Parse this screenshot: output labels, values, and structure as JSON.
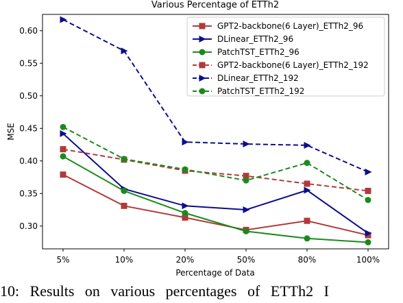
{
  "caption": "10: Results on various percentages of ETTh2 I",
  "chart_data": {
    "type": "line",
    "title": "Various Percentage of ETTh2",
    "xlabel": "Percentage of Data",
    "ylabel": "MSE",
    "categories": [
      "5%",
      "10%",
      "20%",
      "50%",
      "80%",
      "100%"
    ],
    "ylim": [
      0.265,
      0.625
    ],
    "yticks": [
      "0.30",
      "0.35",
      "0.40",
      "0.45",
      "0.50",
      "0.55",
      "0.60"
    ],
    "legend_position": "top-right",
    "grid": false,
    "series": [
      {
        "name": "GPT2-backbone(6 Layer)_ETTh2_96",
        "color": "#b03a3a",
        "dash": "solid",
        "marker": "square",
        "values": [
          0.379,
          0.331,
          0.313,
          0.294,
          0.308,
          0.286
        ]
      },
      {
        "name": "DLinear_ETTh2_96",
        "color": "#0d0d8c",
        "dash": "solid",
        "marker": "triangle-right",
        "values": [
          0.442,
          0.357,
          0.331,
          0.325,
          0.355,
          0.289
        ]
      },
      {
        "name": "PatchTST_ETTh2_96",
        "color": "#1b8a1b",
        "dash": "solid",
        "marker": "circle",
        "values": [
          0.407,
          0.354,
          0.32,
          0.292,
          0.281,
          0.275
        ]
      },
      {
        "name": "GPT2-backbone(6 Layer)_ETTh2_192",
        "color": "#b03a3a",
        "dash": "dashed",
        "marker": "square",
        "values": [
          0.418,
          0.402,
          0.385,
          0.377,
          0.365,
          0.354
        ]
      },
      {
        "name": "DLinear_ETTh2_192",
        "color": "#0d0d8c",
        "dash": "dashed",
        "marker": "triangle-right",
        "values": [
          0.617,
          0.569,
          0.429,
          0.426,
          0.424,
          0.383
        ]
      },
      {
        "name": "PatchTST_ETTh2_192",
        "color": "#1b8a1b",
        "dash": "dashed",
        "marker": "circle",
        "values": [
          0.452,
          0.403,
          0.387,
          0.37,
          0.397,
          0.34
        ]
      }
    ]
  }
}
